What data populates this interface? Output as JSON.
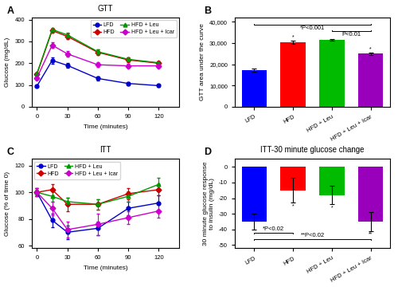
{
  "chart_data": [
    {
      "type": "line",
      "panel": "A",
      "title": "GTT",
      "x_label": "Time (minutes)",
      "y_label": "Glucose (mg/dL)",
      "x": [
        0,
        15,
        30,
        60,
        90,
        120
      ],
      "xlim": [
        -5,
        140
      ],
      "xticks": [
        0,
        30,
        60,
        90,
        120
      ],
      "ylim": [
        0,
        410
      ],
      "yticks": [
        0,
        100,
        200,
        300,
        400
      ],
      "legend": "upper right",
      "series": [
        {
          "name": "LFD",
          "color": "#0000cc",
          "marker": "circle",
          "values": [
            95,
            213,
            190,
            130,
            107,
            97
          ],
          "errors": [
            5,
            15,
            12,
            8,
            7,
            6
          ]
        },
        {
          "name": "HFD",
          "color": "#cc0000",
          "marker": "diamond",
          "values": [
            150,
            350,
            323,
            250,
            215,
            200
          ],
          "errors": [
            8,
            10,
            12,
            12,
            10,
            9
          ]
        },
        {
          "name": "HFD + Leu",
          "color": "#009900",
          "marker": "triangle",
          "values": [
            153,
            355,
            330,
            253,
            218,
            202
          ],
          "errors": [
            6,
            8,
            10,
            10,
            9,
            8
          ]
        },
        {
          "name": "HFD + Leu + Icar",
          "color": "#cc00cc",
          "marker": "diamond",
          "values": [
            133,
            283,
            243,
            193,
            188,
            188
          ],
          "errors": [
            7,
            12,
            13,
            10,
            9,
            8
          ]
        }
      ]
    },
    {
      "type": "bar",
      "panel": "B",
      "y_label": "GTT area under the curve",
      "categories": [
        "LFD",
        "HFD",
        "HFD + Leu",
        "HFD + Leu + Icar"
      ],
      "values": [
        17200,
        30300,
        31500,
        25000
      ],
      "errors": [
        600,
        700,
        500,
        600
      ],
      "colors": [
        "#0000ff",
        "#ff0000",
        "#00bb00",
        "#9900bb"
      ],
      "ylim": [
        0,
        42000
      ],
      "yticks": [
        0,
        {
          "value": 10000,
          "label": "10,000"
        },
        {
          "value": 20000,
          "label": "20,000"
        },
        {
          "value": 30000,
          "label": "30,000"
        },
        {
          "value": 40000,
          "label": "40,000"
        }
      ],
      "brackets": [
        {
          "from": "LFD",
          "to": "HFD + Leu + Icar",
          "y": 38500,
          "text": "*P<0.001"
        },
        {
          "from": "HFD + Leu",
          "to": "HFD + Leu + Icar",
          "y": 35500,
          "text": "P<0.01"
        }
      ],
      "marks": [
        {
          "category": "HFD",
          "text": "*"
        },
        {
          "category": "HFD + Leu + Icar",
          "text": "*"
        }
      ]
    },
    {
      "type": "line",
      "panel": "C",
      "title": "ITT",
      "x_label": "Time (minutes)",
      "y_label": "Glucose (% of time 0)",
      "x": [
        0,
        15,
        30,
        60,
        90,
        120
      ],
      "xlim": [
        -5,
        140
      ],
      "xticks": [
        0,
        30,
        60,
        90,
        120
      ],
      "ylim": [
        58,
        125
      ],
      "yticks": [
        60,
        80,
        100,
        120
      ],
      "legend": "upper left",
      "series": [
        {
          "name": "LFD",
          "color": "#0000cc",
          "marker": "circle",
          "values": [
            100,
            79,
            70,
            73,
            88,
            92
          ],
          "errors": [
            3,
            5,
            5,
            5,
            5,
            6
          ]
        },
        {
          "name": "HFD",
          "color": "#cc0000",
          "marker": "diamond",
          "values": [
            100,
            102,
            91,
            91,
            99,
            102
          ],
          "errors": [
            3,
            4,
            5,
            4,
            4,
            4
          ]
        },
        {
          "name": "HFD + Leu",
          "color": "#009900",
          "marker": "triangle",
          "values": [
            100,
            97,
            93,
            91,
            97,
            106
          ],
          "errors": [
            2,
            4,
            3,
            4,
            4,
            5
          ]
        },
        {
          "name": "HFD + Leu + Icar",
          "color": "#cc00cc",
          "marker": "diamond",
          "values": [
            100,
            88,
            72,
            76,
            81,
            86
          ],
          "errors": [
            3,
            5,
            6,
            8,
            5,
            5
          ]
        }
      ]
    },
    {
      "type": "bar",
      "panel": "D",
      "title": "ITT-30 minute glucose change",
      "y_label": "30 minute glucose response\nto insulin (mg/dL)",
      "categories": [
        "LFD",
        "HFD",
        "HFD + Leu",
        "HFD + Leu + Icar"
      ],
      "values": [
        -35,
        -15,
        -18,
        -35
      ],
      "errors": [
        5,
        8,
        6,
        6
      ],
      "colors": [
        "#0000ff",
        "#ff0000",
        "#00bb00",
        "#9900bb"
      ],
      "ylim": [
        -52,
        5
      ],
      "yticks": [
        -50,
        -40,
        -30,
        -20,
        -10,
        0
      ],
      "brackets": [
        {
          "from": "LFD",
          "to": "HFD",
          "y": -42,
          "text": "*P<0.02"
        },
        {
          "from": "LFD",
          "to": "HFD + Leu + Icar",
          "y": -46,
          "text": "**P<0.02"
        }
      ],
      "marks": [
        {
          "category": "HFD",
          "text": "*"
        },
        {
          "category": "HFD + Leu",
          "text": "*"
        },
        {
          "category": "HFD + Leu + Icar",
          "text": "**"
        }
      ]
    }
  ]
}
